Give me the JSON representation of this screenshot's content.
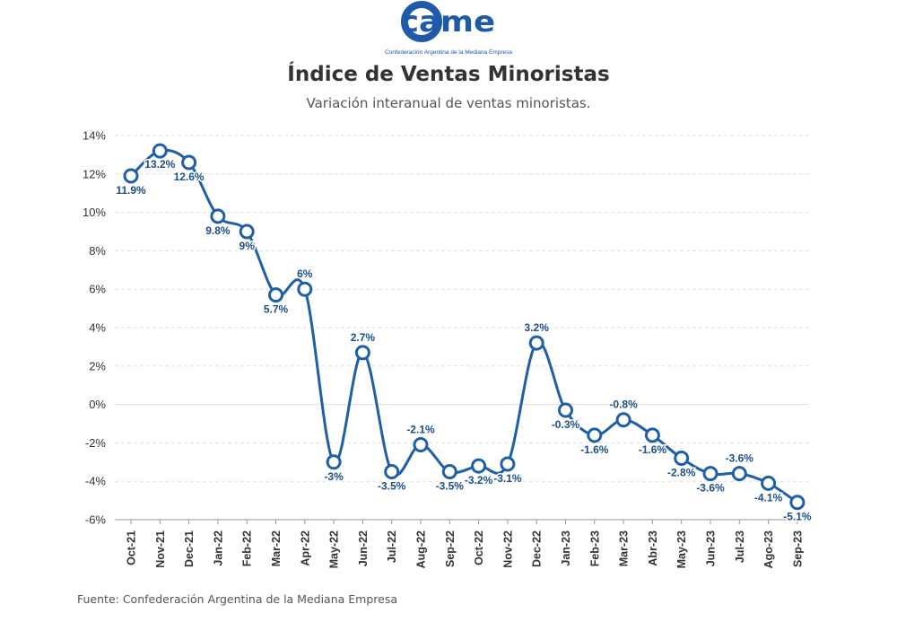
{
  "logo": {
    "text": "came",
    "tagline": "Confederación Argentina de la Mediana Empresa"
  },
  "footer": {
    "source": "Fuente: Confederación Argentina de la Mediana Empresa"
  },
  "colors": {
    "series": "#1f5fa6",
    "label": "#1a4f8a",
    "axis_text": "#333333",
    "grid": "#dddddd",
    "brand": "#1e5aa8"
  },
  "chart_data": {
    "type": "line",
    "title": "Índice de Ventas Minoristas",
    "subtitle": "Variación interanual de ventas minoristas.",
    "xlabel": "",
    "ylabel": "",
    "ylim": [
      -6,
      14
    ],
    "yticks": [
      14,
      12,
      10,
      8,
      6,
      4,
      2,
      0,
      -2,
      -4,
      -6
    ],
    "ytick_labels": [
      "14%",
      "12%",
      "10%",
      "8%",
      "6%",
      "4%",
      "2%",
      "0%",
      "-2%",
      "-4%",
      "-6%"
    ],
    "grid": true,
    "legend": "none",
    "categories": [
      "Oct-21",
      "Nov-21",
      "Dec-21",
      "Jan-22",
      "Feb-22",
      "Mar-22",
      "Apr-22",
      "May-22",
      "Jun-22",
      "Jul-22",
      "Aug-22",
      "Sep-22",
      "Oct-22",
      "Nov-22",
      "Dec-22",
      "Jan-23",
      "Feb-23",
      "Mar-23",
      "Abr-23",
      "May-23",
      "Jun-23",
      "Jul-23",
      "Ago-23",
      "Sep-23"
    ],
    "series": [
      {
        "values": [
          11.9,
          13.2,
          12.6,
          9.8,
          9,
          5.7,
          6,
          -3,
          2.7,
          -3.5,
          -2.1,
          -3.5,
          -3.2,
          -3.1,
          3.2,
          -0.3,
          -1.6,
          -0.8,
          -1.6,
          -2.8,
          -3.6,
          -3.6,
          -4.1,
          -5.1
        ],
        "data_labels": [
          "11.9%",
          "13.2%",
          "12.6%",
          "9.8%",
          "9%",
          "5.7%",
          "6%",
          "-3%",
          "2.7%",
          "-3.5%",
          "-2.1%",
          "-3.5%",
          "-3.2%",
          "-3.1%",
          "3.2%",
          "-0.3%",
          "-1.6%",
          "-0.8%",
          "-1.6%",
          "-2.8%",
          "-3.6%",
          "-3.6%",
          "-4.1%",
          "-5.1%"
        ]
      }
    ]
  }
}
